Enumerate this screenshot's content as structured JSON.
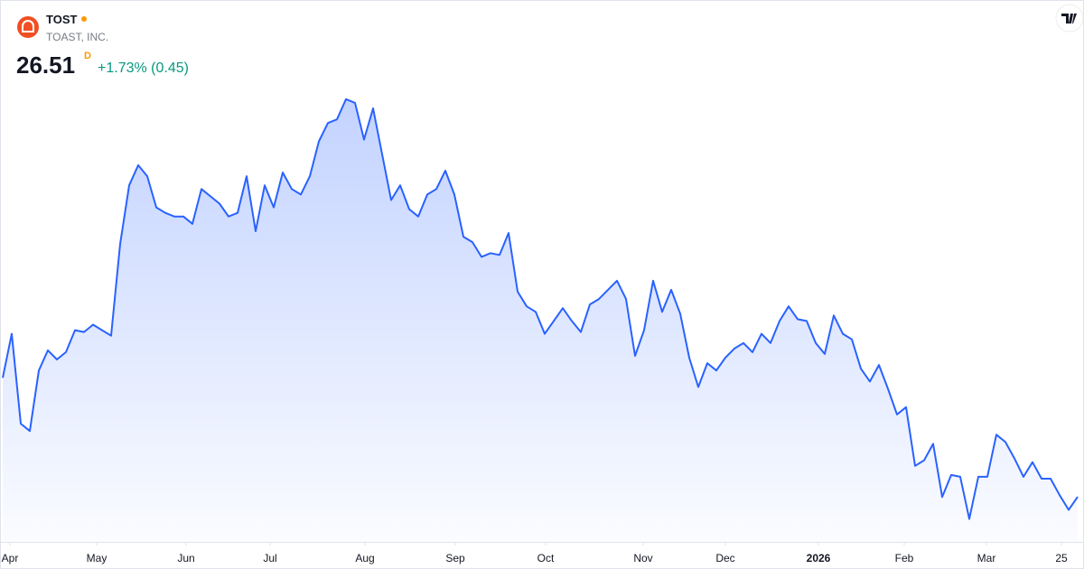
{
  "header": {
    "symbol": "TOST",
    "company": "TOAST, INC.",
    "price": "26.51",
    "interval": "D",
    "change": "+1.73% (0.45)"
  },
  "chart_data": {
    "type": "area",
    "color": "#2962ff",
    "values": [
      33.0,
      35.4,
      30.5,
      30.1,
      33.4,
      34.5,
      34.0,
      34.4,
      35.6,
      35.5,
      35.9,
      35.6,
      35.3,
      40.3,
      43.5,
      44.6,
      44.0,
      42.3,
      42.0,
      41.8,
      41.8,
      41.4,
      43.3,
      42.9,
      42.5,
      41.8,
      42.0,
      44.0,
      41.0,
      43.5,
      42.3,
      44.2,
      43.3,
      43.0,
      44.0,
      45.9,
      46.9,
      47.1,
      48.2,
      48.0,
      46.0,
      47.7,
      45.2,
      42.7,
      43.5,
      42.2,
      41.8,
      43.0,
      43.3,
      44.3,
      43.0,
      40.7,
      40.4,
      39.6,
      39.8,
      39.7,
      40.9,
      37.7,
      36.9,
      36.6,
      35.4,
      36.1,
      36.8,
      36.1,
      35.5,
      37.0,
      37.3,
      37.8,
      38.3,
      37.3,
      34.2,
      35.6,
      38.3,
      36.6,
      37.8,
      36.5,
      34.1,
      32.5,
      33.8,
      33.4,
      34.1,
      34.6,
      34.9,
      34.4,
      35.4,
      34.9,
      36.1,
      36.9,
      36.2,
      36.1,
      34.9,
      34.3,
      36.4,
      35.4,
      35.1,
      33.5,
      32.8,
      33.7,
      32.4,
      31.0,
      31.4,
      28.2,
      28.5,
      29.4,
      26.5,
      27.7,
      27.6,
      25.3,
      27.6,
      27.6,
      29.9,
      29.5,
      28.6,
      27.6,
      28.4,
      27.5,
      27.5,
      26.6,
      25.8,
      26.51
    ],
    "ylim": [
      24,
      51
    ],
    "xticks": [
      {
        "value": 0.8,
        "label": "Apr"
      },
      {
        "value": 10.4,
        "label": "May"
      },
      {
        "value": 20.3,
        "label": "Jun"
      },
      {
        "value": 29.6,
        "label": "Jul"
      },
      {
        "value": 40.1,
        "label": "Aug"
      },
      {
        "value": 50.1,
        "label": "Sep"
      },
      {
        "value": 60.1,
        "label": "Oct"
      },
      {
        "value": 70.9,
        "label": "Nov"
      },
      {
        "value": 80.0,
        "label": "Dec"
      },
      {
        "value": 90.3,
        "label": "2026"
      },
      {
        "value": 99.8,
        "label": "Feb"
      },
      {
        "value": 108.9,
        "label": "Mar"
      },
      {
        "value": 117.2,
        "label": "25"
      }
    ]
  }
}
